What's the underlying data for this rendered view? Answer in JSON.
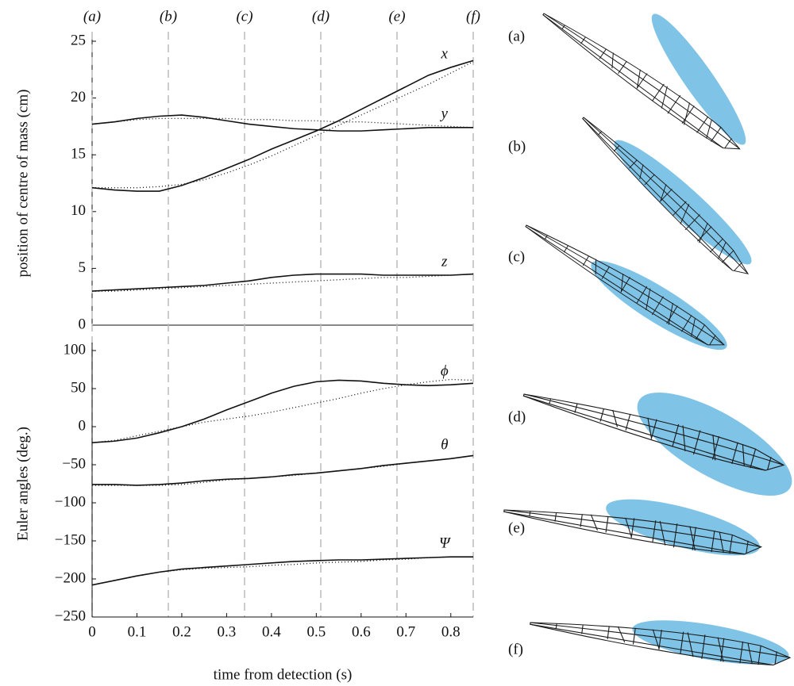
{
  "chart_data": [
    {
      "type": "line",
      "ylabel": "position of centre of mass (cm)",
      "x": [
        0,
        0.05,
        0.1,
        0.15,
        0.2,
        0.25,
        0.3,
        0.35,
        0.4,
        0.45,
        0.5,
        0.55,
        0.6,
        0.65,
        0.7,
        0.75,
        0.8,
        0.85
      ],
      "xlim": [
        0,
        0.85
      ],
      "ylim": [
        0,
        25
      ],
      "yticks": [
        0,
        5,
        10,
        15,
        20,
        25
      ],
      "events": {
        "x": [
          0,
          0.17,
          0.34,
          0.51,
          0.68,
          0.85
        ],
        "labels": [
          "(a)",
          "(b)",
          "(c)",
          "(d)",
          "(e)",
          "(f)"
        ]
      },
      "series": [
        {
          "name": "x",
          "values": [
            12.1,
            11.9,
            11.8,
            11.8,
            12.3,
            13,
            13.8,
            14.6,
            15.5,
            16.3,
            17.1,
            18,
            19,
            20,
            21,
            22,
            22.7,
            23.3
          ],
          "dotted_values": [
            12.1,
            12.1,
            12.1,
            12.2,
            12.4,
            12.8,
            13.4,
            14.1,
            14.9,
            15.8,
            16.7,
            17.6,
            18.5,
            19.4,
            20.3,
            21.2,
            22.2,
            23.2
          ]
        },
        {
          "name": "y",
          "values": [
            17.7,
            17.9,
            18.2,
            18.4,
            18.5,
            18.3,
            18,
            17.7,
            17.5,
            17.3,
            17.2,
            17.1,
            17.1,
            17.2,
            17.3,
            17.4,
            17.4,
            17.4
          ],
          "dotted_values": [
            17.7,
            17.9,
            18.1,
            18.2,
            18.2,
            18.2,
            18.2,
            18.1,
            18.1,
            18,
            18,
            17.9,
            17.9,
            17.8,
            17.7,
            17.6,
            17.5,
            17.4
          ]
        },
        {
          "name": "z",
          "values": [
            3,
            3.1,
            3.2,
            3.3,
            3.4,
            3.5,
            3.7,
            3.9,
            4.2,
            4.4,
            4.5,
            4.5,
            4.5,
            4.4,
            4.4,
            4.4,
            4.4,
            4.5
          ],
          "dotted_values": [
            3,
            3,
            3.1,
            3.2,
            3.3,
            3.4,
            3.5,
            3.6,
            3.7,
            3.8,
            3.9,
            4,
            4.1,
            4.2,
            4.2,
            4.3,
            4.4,
            4.5
          ]
        }
      ]
    },
    {
      "type": "line",
      "ylabel": "Euler angles (deg.)",
      "xlabel": "time from detection (s)",
      "x": [
        0,
        0.05,
        0.1,
        0.15,
        0.2,
        0.25,
        0.3,
        0.35,
        0.4,
        0.45,
        0.5,
        0.55,
        0.6,
        0.65,
        0.7,
        0.75,
        0.8,
        0.85
      ],
      "xlim": [
        0,
        0.85
      ],
      "xticks": [
        0,
        0.1,
        0.2,
        0.3,
        0.4,
        0.5,
        0.6,
        0.7,
        0.8
      ],
      "ylim": [
        -250,
        100
      ],
      "yticks": [
        {
          "value": -250,
          "label": "−250"
        },
        {
          "value": -200,
          "label": "−200"
        },
        {
          "value": -150,
          "label": "−150"
        },
        {
          "value": -100,
          "label": "−100"
        },
        {
          "value": -50,
          "label": "−50"
        },
        0,
        50,
        100
      ],
      "series": [
        {
          "name": "ϕ",
          "values": [
            -21,
            -19,
            -15,
            -8,
            0,
            10,
            22,
            33,
            44,
            53,
            59,
            61,
            60,
            57,
            55,
            54,
            55,
            57
          ],
          "dotted_values": [
            -21,
            -18,
            -12,
            -6,
            0,
            6,
            10,
            14,
            19,
            25,
            31,
            37,
            44,
            50,
            55,
            59,
            62,
            61
          ]
        },
        {
          "name": "θ",
          "values": [
            -76,
            -76,
            -77,
            -76,
            -74,
            -71,
            -69,
            -68,
            -66,
            -63,
            -61,
            -58,
            -55,
            -51,
            -48,
            -45,
            -42,
            -38
          ],
          "dotted_values": [
            -77,
            -77,
            -77,
            -77,
            -76,
            -73,
            -70,
            -68,
            -66,
            -64,
            -61,
            -58,
            -55,
            -52,
            -48,
            -45,
            -42,
            -38
          ]
        },
        {
          "name": "Ψ",
          "values": [
            -208,
            -202,
            -196,
            -191,
            -187,
            -185,
            -183,
            -181,
            -179,
            -177,
            -176,
            -175,
            -175,
            -174,
            -173,
            -172,
            -171,
            -171
          ],
          "dotted_values": [
            -208,
            -202,
            -196,
            -191,
            -188,
            -186,
            -185,
            -184,
            -182,
            -181,
            -179,
            -178,
            -177,
            -175,
            -174,
            -172,
            -171,
            -171
          ]
        }
      ]
    }
  ],
  "fish_panels": {
    "labels": [
      "(a)",
      "(b)",
      "(c)",
      "(d)",
      "(e)",
      "(f)"
    ]
  }
}
